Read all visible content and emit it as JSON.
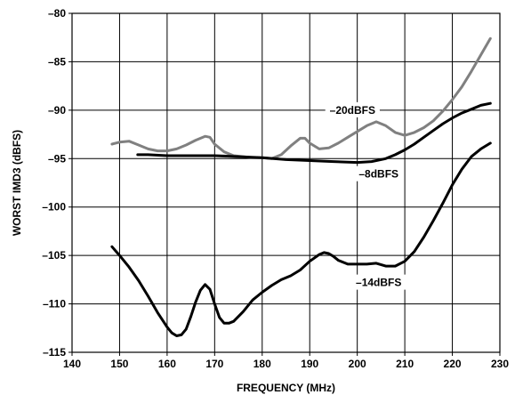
{
  "chart_data": {
    "type": "line",
    "title": "",
    "xlabel": "FREQUENCY (MHz)",
    "ylabel": "WORST IMD3 (dBFS)",
    "xlim": [
      140,
      230
    ],
    "ylim": [
      -115,
      -80
    ],
    "x_ticks": [
      140,
      150,
      160,
      170,
      180,
      190,
      200,
      210,
      220,
      230
    ],
    "y_ticks": [
      -80,
      -85,
      -90,
      -95,
      -100,
      -105,
      -110,
      -115
    ],
    "x_tick_labels": [
      "140",
      "150",
      "160",
      "170",
      "180",
      "190",
      "200",
      "210",
      "220",
      "230"
    ],
    "y_tick_labels": [
      "–80",
      "–85",
      "–90",
      "–95",
      "–100",
      "–105",
      "–110",
      "–115"
    ],
    "grid": true,
    "series": [
      {
        "name": "–20dBFS",
        "color": "#808080",
        "x": [
          148.4,
          150,
          152,
          154,
          156,
          158,
          160,
          162,
          164,
          166,
          168,
          169,
          170,
          172,
          174,
          176,
          178,
          180,
          182,
          184,
          186,
          188,
          189,
          190,
          192,
          194,
          196,
          198,
          200,
          202,
          204,
          206,
          208,
          210,
          212,
          214,
          216,
          218,
          220,
          222,
          224,
          226,
          228
        ],
        "y": [
          -93.5,
          -93.3,
          -93.2,
          -93.6,
          -94.0,
          -94.2,
          -94.2,
          -94.0,
          -93.6,
          -93.1,
          -92.7,
          -92.8,
          -93.5,
          -94.3,
          -94.7,
          -94.8,
          -94.9,
          -94.9,
          -95.0,
          -94.6,
          -93.7,
          -92.9,
          -92.9,
          -93.4,
          -94.0,
          -93.9,
          -93.4,
          -92.8,
          -92.2,
          -91.6,
          -91.2,
          -91.6,
          -92.3,
          -92.6,
          -92.3,
          -91.8,
          -91.1,
          -90.1,
          -88.9,
          -87.6,
          -86.0,
          -84.3,
          -82.6
        ]
      },
      {
        "name": "–8dBFS",
        "color": "#000000",
        "x": [
          153.8,
          156,
          160,
          165,
          170,
          175,
          180,
          185,
          190,
          195,
          200,
          203,
          206,
          208,
          210,
          212,
          214,
          216,
          218,
          220,
          222,
          224,
          226,
          228
        ],
        "y": [
          -94.6,
          -94.6,
          -94.7,
          -94.7,
          -94.7,
          -94.8,
          -94.9,
          -95.1,
          -95.2,
          -95.3,
          -95.4,
          -95.3,
          -95.0,
          -94.6,
          -94.1,
          -93.5,
          -92.8,
          -92.1,
          -91.4,
          -90.8,
          -90.3,
          -89.9,
          -89.5,
          -89.3
        ]
      },
      {
        "name": "–14dBFS",
        "color": "#000000",
        "x": [
          148.4,
          150,
          152,
          154,
          156,
          158,
          160,
          161,
          162,
          163,
          164,
          165,
          166,
          167,
          168,
          169,
          170,
          171,
          172,
          173,
          174,
          176,
          178,
          180,
          182,
          184,
          186,
          188,
          190,
          192,
          193,
          194,
          195,
          196,
          198,
          200,
          202,
          204,
          206,
          208,
          210,
          212,
          214,
          216,
          218,
          220,
          222,
          224,
          226,
          228
        ],
        "y": [
          -104.1,
          -105.0,
          -106.2,
          -107.6,
          -109.2,
          -110.9,
          -112.4,
          -113.0,
          -113.3,
          -113.2,
          -112.6,
          -111.3,
          -109.8,
          -108.6,
          -108.0,
          -108.5,
          -110.0,
          -111.4,
          -112.0,
          -112.0,
          -111.8,
          -110.8,
          -109.6,
          -108.8,
          -108.1,
          -107.5,
          -107.1,
          -106.5,
          -105.6,
          -104.9,
          -104.7,
          -104.8,
          -105.1,
          -105.5,
          -105.9,
          -105.9,
          -105.9,
          -105.8,
          -106.1,
          -106.1,
          -105.6,
          -104.6,
          -103.1,
          -101.4,
          -99.6,
          -97.7,
          -96.1,
          -94.8,
          -94.0,
          -93.4
        ]
      }
    ],
    "annotations": [
      {
        "series": "–20dBFS",
        "text": "–20dBFS",
        "x": 199,
        "y": -90.0
      },
      {
        "series": "–8dBFS",
        "text": "–8dBFS",
        "x": 204.5,
        "y": -96.6
      },
      {
        "series": "–14dBFS",
        "text": "–14dBFS",
        "x": 204.5,
        "y": -107.8
      }
    ]
  }
}
